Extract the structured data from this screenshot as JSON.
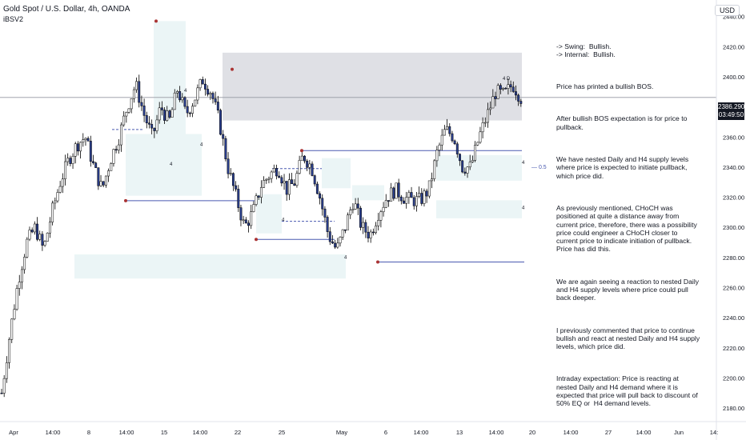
{
  "header": {
    "title": "Gold Spot / U.S. Dollar, 4h, OANDA",
    "indicator": "iBSV2",
    "currency": "USD"
  },
  "price_tag": {
    "price": "2386.290",
    "countdown": "03:49:50"
  },
  "notes": [
    "-> Swing:  Bullish.\n-> Internal:  Bullish.",
    "Price has printed a bullish BOS.",
    "After bullish BOS expectation is for price to pullback.",
    "We have nested Daily and H4 supply levels where price is expected to initiate pullback, which price did.",
    "As previously mentioned, CHoCH was positioned at quite a distance away from current price, therefore, there was a possibility price could engineer a CHoCH closer to current price to indicate initiation of pullback.  Price has did this.",
    "We are again seeing a reaction to nested Daily and H4 supply levels where price could pull back deeper.",
    "I previously commented that price to continue bullish and react at nested Daily and H4 supply levels, which price did.",
    "Intraday expectation: Price is reacting at nested Daily and H4 demand where it is expected that price will pull back to discount of 50% EQ or  H4 demand levels."
  ],
  "chart_data": {
    "type": "line",
    "title": "Gold Spot / U.S. Dollar, 4h, OANDA",
    "y_ticks": [
      2180,
      2200,
      2220,
      2240,
      2260,
      2280,
      2300,
      2320,
      2340,
      2360,
      2380,
      2400,
      2420,
      2440
    ],
    "ylim": [
      2171,
      2451
    ],
    "x_ticks": [
      "Apr",
      "14:00",
      "8",
      "14:00",
      "15",
      "14:00",
      "22",
      "25",
      "May",
      "6",
      "14:00",
      "13",
      "14:00",
      "20",
      "14:00",
      "27",
      "14:00",
      "Jun",
      "14:"
    ],
    "last_price": 2386.29,
    "close_path": [
      2190,
      2230,
      2265,
      2290,
      2300,
      2285,
      2310,
      2330,
      2345,
      2355,
      2360,
      2340,
      2325,
      2345,
      2360,
      2380,
      2395,
      2375,
      2360,
      2380,
      2370,
      2392,
      2375,
      2385,
      2398,
      2390,
      2370,
      2340,
      2320,
      2300,
      2310,
      2328,
      2335,
      2340,
      2325,
      2330,
      2348,
      2340,
      2320,
      2295,
      2285,
      2300,
      2318,
      2300,
      2295,
      2310,
      2320,
      2325,
      2320,
      2318,
      2318,
      2325,
      2350,
      2365,
      2360,
      2340,
      2340,
      2360,
      2375,
      2390,
      2388,
      2395,
      2386
    ],
    "labels": {
      "eq": "0.5",
      "zone_tf": "4",
      "zone_tf_d": "4  D"
    },
    "price_lines": [
      2317.7,
      2351,
      2292,
      2277
    ],
    "colors": {
      "up": "#ffffff",
      "down": "#2a3f8f",
      "outline": "#000000",
      "zone_demand": "#e8f3f5",
      "zone_supply": "#d9dbe1",
      "line": "#4a5ab0"
    }
  }
}
